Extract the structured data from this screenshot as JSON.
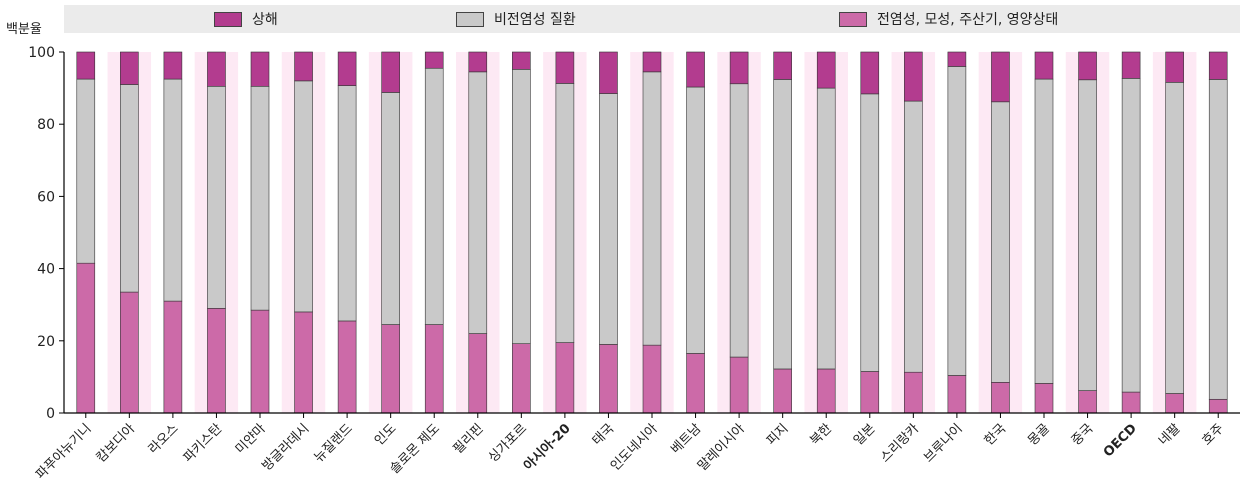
{
  "chart_data": {
    "type": "bar",
    "stacked": true,
    "ylabel": "백분율",
    "ylim": [
      0,
      100
    ],
    "yticks": [
      0,
      20,
      40,
      60,
      80,
      100
    ],
    "categories": [
      "파푸아뉴기니",
      "캄보디아",
      "라오스",
      "파키스탄",
      "미얀마",
      "방글라데시",
      "뉴질랜드",
      "인도",
      "솔로몬 제도",
      "필리핀",
      "싱가포르",
      "아시아-20",
      "태국",
      "인도네시아",
      "베트남",
      "말레이시아",
      "피지",
      "북한",
      "일본",
      "스리랑카",
      "브루나이",
      "한국",
      "몽골",
      "중국",
      "OECD",
      "네팔",
      "호주"
    ],
    "bold_categories": [
      "아시아-20",
      "OECD"
    ],
    "series": [
      {
        "name": "전염성, 모성, 주산기, 영양상태",
        "color": "#cc6aa8",
        "values": [
          41.5,
          33.5,
          31,
          29,
          28.5,
          28,
          25.5,
          24.5,
          24.5,
          22,
          19.2,
          19.5,
          19,
          18.8,
          16.5,
          15.5,
          12.2,
          12.2,
          11.5,
          11.3,
          10.4,
          8.5,
          8.2,
          6.2,
          5.8,
          5.4,
          3.8
        ]
      },
      {
        "name": "비전염성 질환",
        "color": "#c9c9c9",
        "values": [
          51,
          57.5,
          61.5,
          61.5,
          62,
          64,
          65.2,
          64.3,
          71,
          72.5,
          76,
          71.8,
          69.5,
          75.7,
          73.8,
          75.7,
          80.2,
          77.8,
          76.9,
          75.1,
          85.6,
          77.7,
          84.3,
          86.1,
          86.9,
          86.2,
          88.6
        ]
      },
      {
        "name": "상해",
        "color": "#b33c8f",
        "values": [
          7.5,
          9,
          7.5,
          9.5,
          9.5,
          8,
          9.3,
          11.2,
          4.5,
          5.5,
          4.8,
          8.7,
          11.5,
          5.5,
          9.7,
          8.8,
          7.6,
          10,
          11.6,
          13.6,
          4,
          13.8,
          7.5,
          7.7,
          7.3,
          8.4,
          7.6
        ]
      }
    ],
    "legend": {
      "placement": "top",
      "order": [
        "상해",
        "비전염성 질환",
        "전염성, 모성, 주산기, 영양상태"
      ]
    },
    "background_bands": {
      "even": "#ffffff",
      "odd": "#fde9f4"
    },
    "grid": false
  }
}
